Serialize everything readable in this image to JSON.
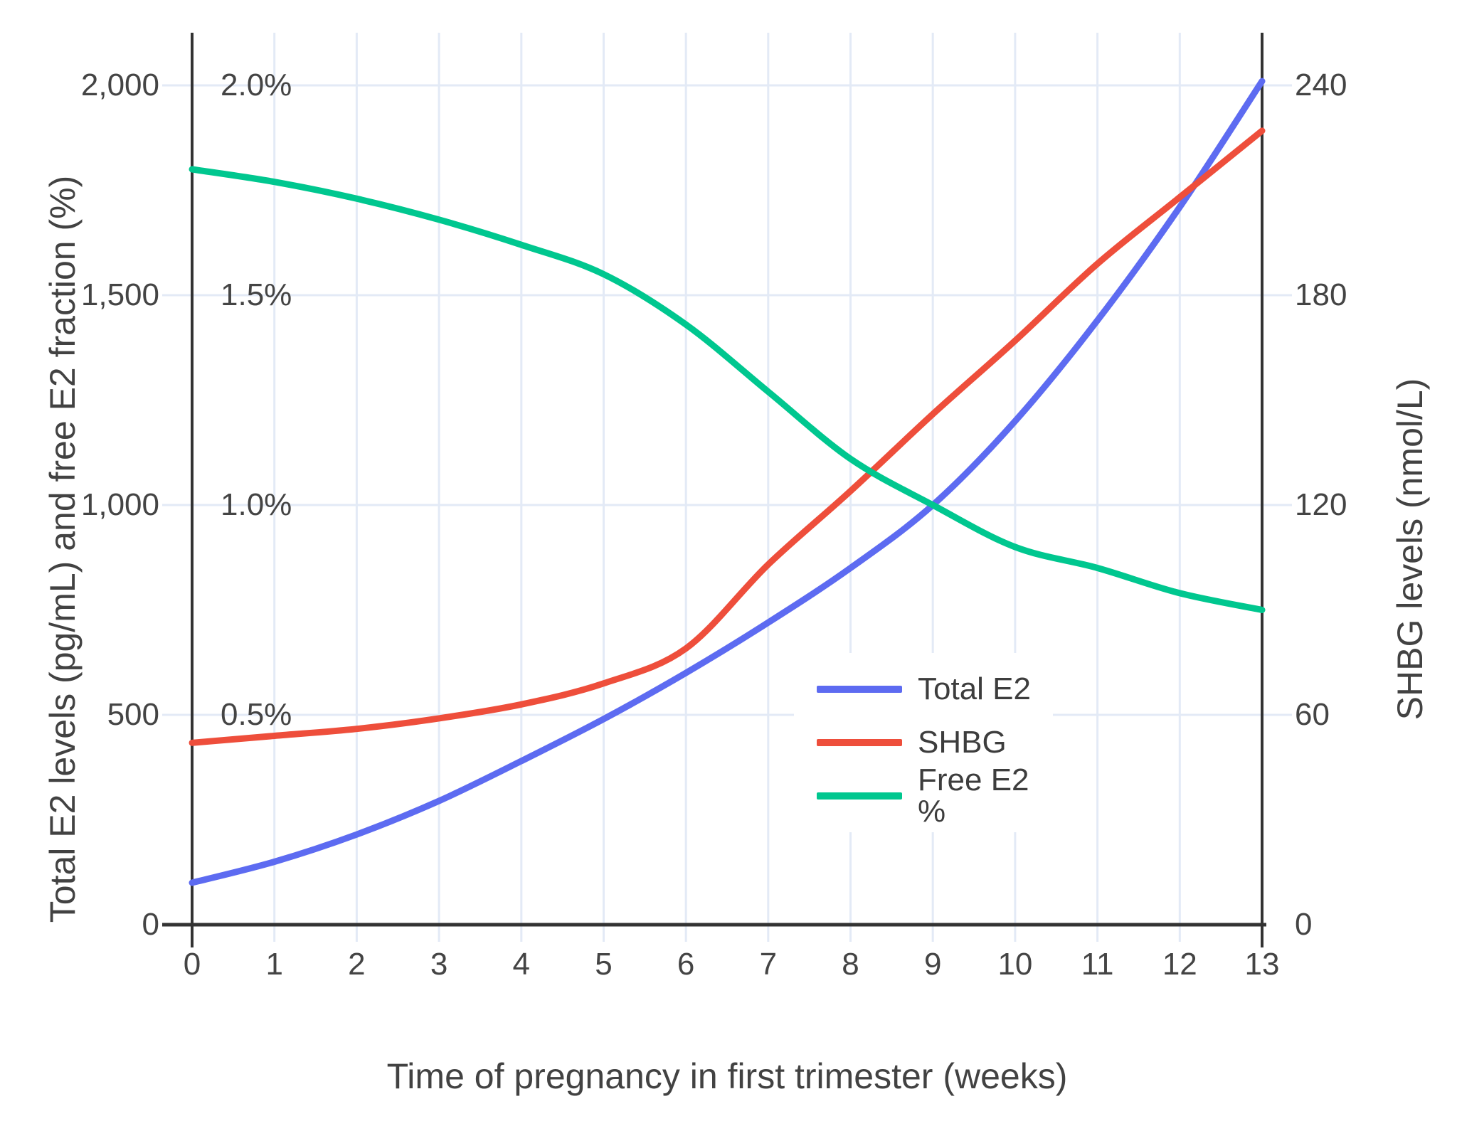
{
  "chart_data": {
    "type": "line",
    "title": "",
    "xlabel": "Time of pregnancy in first trimester (weeks)",
    "ylabel_left": "Total E2 levels (pg/mL) and free E2 fraction (%)",
    "ylabel_right": "SHBG levels (nmol/L)",
    "x": [
      0,
      1,
      2,
      3,
      4,
      5,
      6,
      7,
      8,
      9,
      10,
      11,
      12,
      13
    ],
    "x_tick_labels": [
      "0",
      "1",
      "2",
      "3",
      "4",
      "5",
      "6",
      "7",
      "8",
      "9",
      "10",
      "11",
      "12",
      "13"
    ],
    "left_axis": {
      "tick_values": [
        0,
        500,
        1000,
        1500,
        2000
      ],
      "tick_labels": [
        "0",
        "500",
        "1,000",
        "1,500",
        "2,000"
      ],
      "range": [
        0,
        2000
      ]
    },
    "percent_axis": {
      "tick_values": [
        0.5,
        1.0,
        1.5,
        2.0
      ],
      "tick_labels": [
        "0.5%",
        "1.0%",
        "1.5%",
        "2.0%"
      ],
      "range": [
        0,
        2.0
      ]
    },
    "right_axis": {
      "tick_values": [
        0,
        60,
        120,
        180,
        240
      ],
      "tick_labels": [
        "0",
        "60",
        "120",
        "180",
        "240"
      ],
      "range": [
        0,
        240
      ]
    },
    "grid": true,
    "legend_position": "inside lower-right",
    "series": [
      {
        "name": "Total E2",
        "axis": "left",
        "color": "#5D6BF1",
        "values": [
          100,
          150,
          215,
          295,
          390,
          490,
          600,
          720,
          850,
          1000,
          1200,
          1440,
          1710,
          2010
        ]
      },
      {
        "name": "SHBG",
        "axis": "right",
        "color": "#EE4E3B",
        "values": [
          52,
          54,
          56,
          59,
          63,
          69,
          79,
          103,
          124,
          146,
          167,
          189,
          208,
          227
        ]
      },
      {
        "name": "Free E2 %",
        "axis": "percent",
        "color": "#00C78F",
        "values": [
          1.8,
          1.77,
          1.73,
          1.68,
          1.62,
          1.55,
          1.43,
          1.27,
          1.11,
          1.0,
          0.9,
          0.85,
          0.79,
          0.75
        ]
      }
    ]
  },
  "colors": {
    "background": "#FFFFFF",
    "gridline": "#E3EAF6",
    "axis_line": "#333333",
    "tick_text": "#444444"
  }
}
